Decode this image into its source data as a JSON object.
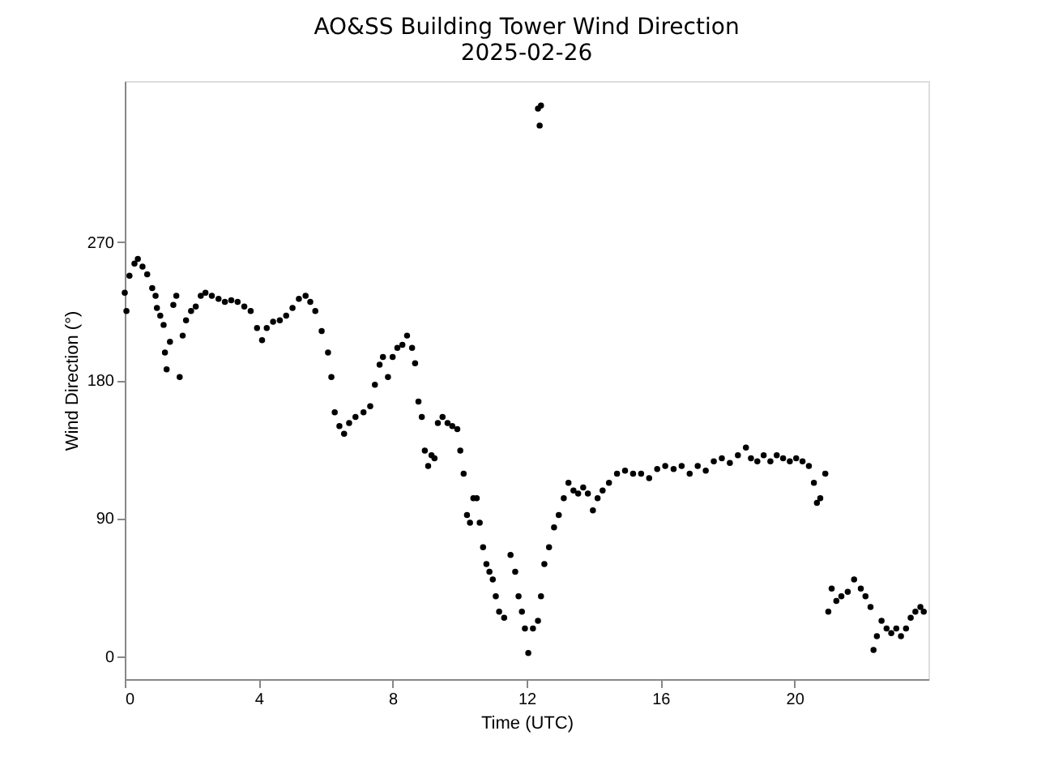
{
  "chart_data": {
    "type": "scatter",
    "title": "AO&SS Building Tower Wind Direction\n2025-02-26",
    "xlabel": "Time (UTC)",
    "ylabel": "Wind Direction (°)",
    "xlim": [
      0,
      24
    ],
    "xticks": [
      0,
      4,
      8,
      12,
      16,
      20
    ],
    "ylim": [
      -15,
      375
    ],
    "yticks": [
      0,
      90,
      180,
      270
    ],
    "grid": false,
    "marker": "circle",
    "series": [
      {
        "color": "#000000",
        "x": [
          0,
          0.05,
          0.14,
          0.29,
          0.39,
          0.53,
          0.67,
          0.82,
          0.92,
          0.96,
          1.06,
          1.16,
          1.2,
          1.25,
          1.35,
          1.45,
          1.54,
          1.64,
          1.73,
          1.83,
          1.98,
          2.12,
          2.27,
          2.41,
          2.6,
          2.8,
          2.99,
          3.18,
          3.37,
          3.57,
          3.76,
          3.95,
          4.1,
          4.24,
          4.43,
          4.63,
          4.82,
          5.01,
          5.2,
          5.4,
          5.54,
          5.69,
          5.88,
          6.07,
          6.17,
          6.27,
          6.41,
          6.55,
          6.7,
          6.89,
          7.13,
          7.33,
          7.47,
          7.61,
          7.71,
          7.86,
          8.0,
          8.14,
          8.29,
          8.43,
          8.58,
          8.67,
          8.77,
          8.87,
          8.96,
          9.06,
          9.16,
          9.25,
          9.35,
          9.49,
          9.64,
          9.78,
          9.93,
          10.02,
          10.12,
          10.22,
          10.31,
          10.41,
          10.51,
          10.6,
          10.7,
          10.8,
          10.89,
          10.99,
          11.08,
          11.18,
          11.33,
          11.52,
          11.66,
          11.76,
          11.86,
          11.95,
          12.05,
          12.19,
          12.34,
          12.34,
          12.39,
          12.43,
          12.43,
          12.53,
          12.67,
          12.82,
          12.96,
          13.11,
          13.25,
          13.4,
          13.54,
          13.69,
          13.83,
          13.98,
          14.12,
          14.27,
          14.46,
          14.7,
          14.94,
          15.18,
          15.42,
          15.66,
          15.9,
          16.14,
          16.39,
          16.63,
          16.87,
          17.11,
          17.35,
          17.59,
          17.83,
          18.07,
          18.31,
          18.55,
          18.7,
          18.89,
          19.08,
          19.28,
          19.47,
          19.66,
          19.86,
          20.05,
          20.24,
          20.43,
          20.58,
          20.67,
          20.77,
          20.92,
          21.01,
          21.11,
          21.25,
          21.4,
          21.59,
          21.78,
          21.98,
          22.12,
          22.27,
          22.36,
          22.46,
          22.6,
          22.75,
          22.89,
          23.04,
          23.18,
          23.33,
          23.47,
          23.61,
          23.76,
          23.86
        ],
        "values": [
          237,
          225,
          248,
          256,
          259,
          254,
          249,
          240,
          235,
          227,
          222,
          216,
          198,
          187,
          205,
          229,
          235,
          182,
          209,
          219,
          225,
          228,
          235,
          237,
          235,
          233,
          231,
          232,
          231,
          228,
          225,
          214,
          206,
          214,
          218,
          219,
          222,
          227,
          233,
          235,
          231,
          225,
          212,
          198,
          182,
          159,
          150,
          145,
          152,
          156,
          159,
          163,
          177,
          190,
          195,
          182,
          195,
          201,
          203,
          209,
          201,
          191,
          166,
          156,
          134,
          124,
          131,
          129,
          152,
          156,
          152,
          150,
          148,
          134,
          119,
          92,
          87,
          103,
          103,
          87,
          71,
          60,
          55,
          50,
          39,
          29,
          25,
          66,
          55,
          39,
          29,
          18,
          2,
          18,
          23,
          357,
          346,
          359,
          39,
          60,
          71,
          84,
          92,
          103,
          113,
          108,
          106,
          110,
          106,
          95,
          103,
          108,
          113,
          119,
          121,
          119,
          119,
          116,
          122,
          124,
          122,
          124,
          119,
          124,
          121,
          127,
          129,
          126,
          131,
          136,
          129,
          127,
          131,
          127,
          131,
          129,
          127,
          129,
          127,
          124,
          113,
          100,
          103,
          119,
          29,
          44,
          36,
          39,
          42,
          50,
          44,
          39,
          32,
          4,
          13,
          23,
          18,
          15,
          18,
          13,
          18,
          25,
          29,
          32,
          29
        ]
      }
    ]
  }
}
